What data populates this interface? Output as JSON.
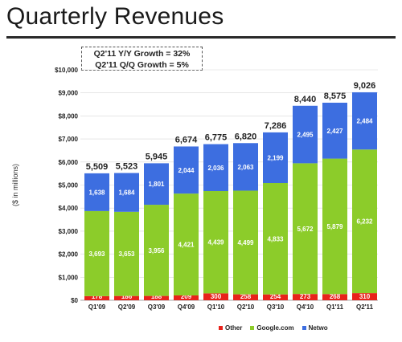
{
  "chart_data": {
    "type": "bar",
    "stacked": true,
    "title": "Quarterly Revenues",
    "annotation": [
      "Q2'11 Y/Y Growth = 32%",
      "Q2'11 Q/Q Growth = 5%"
    ],
    "ylabel": "($ in millions)",
    "xlabel": "",
    "ylim": [
      0,
      10000
    ],
    "yticks": [
      "$0",
      "$1,000",
      "$2,000",
      "$3,000",
      "$4,000",
      "$5,000",
      "$6,000",
      "$7,000",
      "$8,000",
      "$9,000",
      "$10,000"
    ],
    "categories": [
      "Q1'09",
      "Q2'09",
      "Q3'09",
      "Q4'09",
      "Q1'10",
      "Q2'10",
      "Q3'10",
      "Q4'10",
      "Q1'11",
      "Q2'11"
    ],
    "series": [
      {
        "name": "Other",
        "color": "#e8221b",
        "values": [
          178,
          186,
          188,
          209,
          300,
          258,
          254,
          273,
          268,
          310
        ],
        "labels": [
          "178",
          "186",
          "188",
          "209",
          "300",
          "258",
          "254",
          "273",
          "268",
          "310"
        ]
      },
      {
        "name": "Google.com",
        "color": "#8ccc2a",
        "values": [
          3693,
          3653,
          3956,
          4421,
          4439,
          4499,
          4833,
          5672,
          5879,
          6232
        ],
        "labels": [
          "3,693",
          "3,653",
          "3,956",
          "4,421",
          "4,439",
          "4,499",
          "4,833",
          "5,672",
          "5,879",
          "6,232"
        ]
      },
      {
        "name": "Network",
        "color": "#3d6ee0",
        "values": [
          1638,
          1684,
          1801,
          2044,
          2036,
          2063,
          2199,
          2495,
          2427,
          2484
        ],
        "labels": [
          "1,638",
          "1,684",
          "1,801",
          "2,044",
          "2,036",
          "2,063",
          "2,199",
          "2,495",
          "2,427",
          "2,484"
        ]
      }
    ],
    "totals": [
      "5,509",
      "5,523",
      "5,945",
      "6,674",
      "6,775",
      "6,820",
      "7,286",
      "8,440",
      "8,575",
      "9,026"
    ],
    "legend": {
      "placement": "bottom-right",
      "items": [
        "Other",
        "Google.com",
        "Netwo"
      ]
    },
    "grid": true
  }
}
